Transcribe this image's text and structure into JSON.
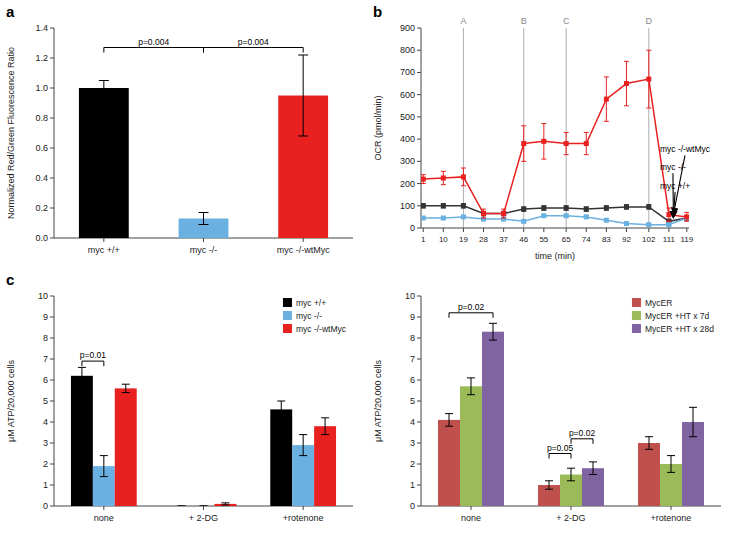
{
  "chart_data": [
    {
      "type": "bar",
      "title": "a",
      "categories": [
        "myc +/+",
        "myc -/-",
        "myc -/-wtMyc"
      ],
      "values": [
        1.0,
        0.13,
        0.95
      ],
      "errors": [
        0.05,
        0.04,
        0.27
      ],
      "colors": [
        "#000000",
        "#6ab0e0",
        "#e82020"
      ],
      "ylabel": "Normalized Red/Green Fluorescence Ratio",
      "ylim": [
        0,
        1.4
      ],
      "yticks": [
        {
          "value": 0,
          "label": "0.0"
        },
        0.2,
        0.4,
        0.6,
        0.8,
        {
          "value": 1,
          "label": "1.0"
        },
        1.2,
        1.4
      ],
      "annotations": [
        {
          "from": "myc +/+",
          "to": "myc -/-",
          "y": 1.27,
          "label": "p=0.004"
        },
        {
          "from": "myc -/-",
          "to": "myc -/-wtMyc",
          "y": 1.27,
          "label": "p=0.004"
        }
      ]
    },
    {
      "type": "line",
      "title": "b",
      "x": [
        1,
        10,
        19,
        28,
        37,
        46,
        55,
        65,
        74,
        83,
        92,
        102,
        111,
        119
      ],
      "xlabel": "time (min)",
      "ylabel": "OCR (pmol/min)",
      "xlim": [
        0,
        120
      ],
      "xticks": [
        1,
        10,
        19,
        28,
        37,
        46,
        55,
        65,
        74,
        83,
        92,
        102,
        111,
        119
      ],
      "ylim": [
        0,
        900
      ],
      "yticks": [
        0,
        100,
        200,
        300,
        400,
        500,
        600,
        700,
        800,
        900
      ],
      "marker": "square",
      "series": [
        {
          "color": "#333333",
          "values": [
            100,
            100,
            100,
            65,
            65,
            85,
            90,
            90,
            85,
            90,
            95,
            95,
            30,
            45
          ],
          "errors": [
            10,
            10,
            10,
            10,
            10,
            10,
            10,
            10,
            10,
            10,
            10,
            10,
            10,
            10
          ]
        },
        {
          "color": "#6ab0e0",
          "values": [
            45,
            45,
            50,
            40,
            40,
            30,
            55,
            55,
            50,
            35,
            20,
            15,
            15,
            45
          ],
          "errors": [
            5,
            5,
            5,
            5,
            5,
            5,
            5,
            5,
            5,
            5,
            5,
            5,
            5,
            5
          ]
        },
        {
          "color": "#e82020",
          "values": [
            220,
            225,
            230,
            65,
            65,
            380,
            390,
            380,
            380,
            580,
            650,
            670,
            60,
            50
          ],
          "errors": [
            20,
            30,
            40,
            20,
            20,
            80,
            80,
            50,
            50,
            100,
            100,
            130,
            30,
            20
          ]
        }
      ],
      "vlines": [
        {
          "x": 19,
          "label": "A"
        },
        {
          "x": 46,
          "label": "B"
        },
        {
          "x": 65,
          "label": "C"
        },
        {
          "x": 102,
          "label": "D"
        }
      ],
      "annotations": [
        {
          "label": "myc -/-wtMyc",
          "x": 107,
          "y": 340,
          "arrow_x": 113,
          "arrow_y": 60
        },
        {
          "label": "myc -/-",
          "x": 107,
          "y": 260,
          "arrow_x": 113,
          "arrow_y": 45
        },
        {
          "label": "myc +/+",
          "x": 107,
          "y": 175,
          "arrow_x": 113,
          "arrow_y": 45
        }
      ]
    },
    {
      "type": "bar",
      "title": "c",
      "categories": [
        "none",
        "+ 2-DG",
        "+rotenone"
      ],
      "ylabel": "μM ATP/20,000 cells",
      "ylim": [
        0,
        10
      ],
      "yticks": [
        0,
        1,
        2,
        3,
        4,
        5,
        6,
        7,
        8,
        9,
        10
      ],
      "legend": "upper right",
      "series": [
        {
          "name": "myc +/+",
          "color": "#000000",
          "values": [
            6.2,
            0.0,
            4.6
          ],
          "errors": [
            0.4,
            0.0,
            0.4
          ]
        },
        {
          "name": "myc -/-",
          "color": "#6ab0e0",
          "values": [
            1.9,
            0.0,
            2.9
          ],
          "errors": [
            0.5,
            0.0,
            0.5
          ]
        },
        {
          "name": "myc -/-wtMyc",
          "color": "#e82020",
          "values": [
            5.6,
            0.1,
            3.8
          ],
          "errors": [
            0.2,
            0.05,
            0.4
          ]
        }
      ],
      "annotations": [
        {
          "category": "none",
          "from": "myc +/+",
          "to": "myc -/-",
          "y": 6.9,
          "label": "p=0.01"
        }
      ]
    },
    {
      "type": "bar",
      "categories": [
        "none",
        "+ 2-DG",
        "+rotenone"
      ],
      "ylabel": "μM ATP/20,000 cells",
      "ylim": [
        0,
        10
      ],
      "yticks": [
        0,
        1,
        2,
        3,
        4,
        5,
        6,
        7,
        8,
        9,
        10
      ],
      "legend": "upper right",
      "series": [
        {
          "name": "MycER",
          "color": "#c0504d",
          "values": [
            4.1,
            1.0,
            3.0
          ],
          "errors": [
            0.3,
            0.2,
            0.3
          ]
        },
        {
          "name": "MycER +HT x 7d",
          "color": "#9bbb59",
          "values": [
            5.7,
            1.5,
            2.0
          ],
          "errors": [
            0.4,
            0.3,
            0.4
          ]
        },
        {
          "name": "MycER +HT x 28d",
          "color": "#8064a2",
          "values": [
            8.3,
            1.8,
            4.0
          ],
          "errors": [
            0.4,
            0.3,
            0.7
          ]
        }
      ],
      "annotations": [
        {
          "category": "none",
          "from": "MycER",
          "to": "MycER +HT x 28d",
          "y": 9.2,
          "label": "p=0.02"
        },
        {
          "category": "+ 2-DG",
          "from": "MycER",
          "to": "MycER +HT x 7d",
          "y": 2.5,
          "label": "p=0.05"
        },
        {
          "category": "+ 2-DG",
          "from": "MycER +HT x 7d",
          "to": "MycER +HT x 28d",
          "y": 3.2,
          "label": "p=0.02"
        }
      ]
    }
  ]
}
